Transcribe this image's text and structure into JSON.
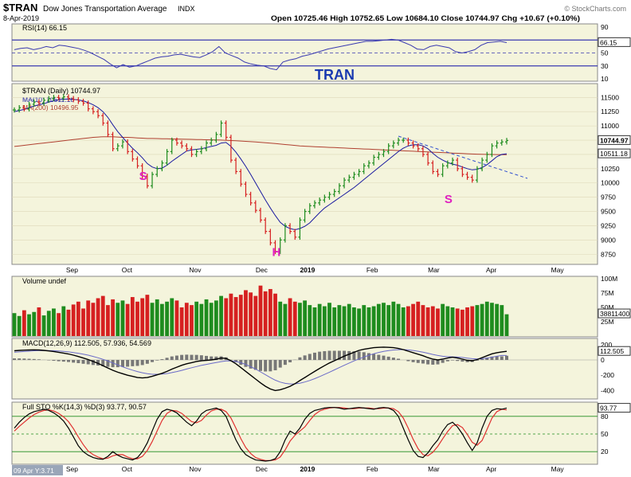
{
  "header": {
    "symbol": "$TRAN",
    "name": "Dow Jones Transportation Average",
    "exchange": "INDX",
    "date": "8-Apr-2019",
    "ohlc_text": "Open 10725.46  High 10752.65  Low 10684.10  Close 10744.97  Chg +10.67 (+0.10%)",
    "brand": "© StockCharts.com"
  },
  "colors": {
    "panel_bg": "#f4f4dc",
    "up": "#1e8c1e",
    "down": "#d62020",
    "line_dark": "#000000",
    "ma10": "#1a1aa0",
    "ma200": "#b04030",
    "rsi": "#3a3ab0",
    "annotation": "#e020c0",
    "tran_label": "#1a3ab0",
    "trendline": "#3050d0"
  },
  "chart_data": [
    {
      "type": "line",
      "panel": "rsi",
      "title": "RSI(14) 66.15",
      "last_value": 66.15,
      "ylim": [
        10,
        90
      ],
      "levels": [
        70,
        50,
        30
      ],
      "ticks": [
        "90",
        "70",
        "50",
        "30",
        "10"
      ],
      "annotation": "TRAN",
      "values": [
        55,
        57,
        58,
        55,
        57,
        60,
        58,
        62,
        61,
        59,
        57,
        54,
        50,
        45,
        40,
        33,
        27,
        32,
        28,
        30,
        34,
        38,
        42,
        44,
        45,
        47,
        48,
        46,
        44,
        43,
        47,
        52,
        60,
        50,
        46,
        42,
        36,
        33,
        31,
        30,
        26,
        24,
        36,
        39,
        41,
        45,
        47,
        50,
        53,
        56,
        58,
        60,
        62,
        64,
        66,
        68,
        68,
        69,
        70,
        71,
        70,
        66,
        62,
        56,
        55,
        60,
        62,
        60,
        58,
        52,
        50,
        52,
        55,
        62,
        66,
        67,
        68,
        66
      ]
    },
    {
      "type": "candlestick",
      "panel": "price",
      "title": "$TRAN (Daily) 10744.97",
      "series": [
        {
          "name": "MA(10) 10511.18",
          "last": 10511.18
        },
        {
          "name": "MA(200) 10496.95",
          "last": 10496.95
        }
      ],
      "ylim": [
        8600,
        11700
      ],
      "y_ticks": [
        "11500",
        "11250",
        "11000",
        "10750",
        "10500",
        "10250",
        "10000",
        "9750",
        "9500",
        "9250",
        "9000",
        "8750"
      ],
      "last_label": "10744.97",
      "ma10_label": "10511.18",
      "x_labels": [
        "Sep",
        "Oct",
        "Nov",
        "Dec",
        "2019",
        "Feb",
        "Mar",
        "Apr",
        "May"
      ],
      "closes": [
        11280,
        11320,
        11300,
        11380,
        11420,
        11400,
        11450,
        11480,
        11500,
        11490,
        11510,
        11480,
        11460,
        11430,
        11400,
        11300,
        11250,
        11180,
        11050,
        10850,
        10600,
        10650,
        10720,
        10550,
        10420,
        10300,
        10120,
        9950,
        10150,
        10250,
        10350,
        10550,
        10750,
        10700,
        10650,
        10600,
        10500,
        10550,
        10600,
        10700,
        10750,
        10850,
        11050,
        10800,
        10400,
        10200,
        9980,
        9800,
        9650,
        9520,
        9350,
        9150,
        8950,
        8800,
        9000,
        9250,
        9150,
        9050,
        9350,
        9500,
        9600,
        9650,
        9700,
        9750,
        9800,
        9850,
        9950,
        10050,
        10100,
        10150,
        10200,
        10300,
        10350,
        10450,
        10500,
        10550,
        10650,
        10700,
        10750,
        10750,
        10700,
        10650,
        10600,
        10500,
        10350,
        10200,
        10150,
        10300,
        10350,
        10400,
        10250,
        10150,
        10100,
        10050,
        10250,
        10400,
        10500,
        10650,
        10700,
        10720,
        10745
      ],
      "ma10": [
        11250,
        11270,
        11290,
        11320,
        11350,
        11370,
        11390,
        11420,
        11440,
        11460,
        11470,
        11470,
        11465,
        11455,
        11440,
        11410,
        11370,
        11320,
        11250,
        11150,
        11020,
        10900,
        10800,
        10700,
        10610,
        10530,
        10440,
        10340,
        10280,
        10250,
        10260,
        10310,
        10380,
        10440,
        10500,
        10560,
        10580,
        10590,
        10600,
        10620,
        10640,
        10660,
        10700,
        10710,
        10640,
        10540,
        10420,
        10290,
        10150,
        10000,
        9850,
        9700,
        9560,
        9430,
        9310,
        9240,
        9200,
        9180,
        9200,
        9240,
        9300,
        9390,
        9480,
        9560,
        9620,
        9680,
        9740,
        9800,
        9860,
        9920,
        9990,
        10060,
        10130,
        10200,
        10270,
        10340,
        10410,
        10480,
        10550,
        10610,
        10650,
        10670,
        10670,
        10650,
        10600,
        10520,
        10450,
        10400,
        10360,
        10330,
        10310,
        10280,
        10250,
        10230,
        10240,
        10270,
        10320,
        10390,
        10460,
        10500,
        10511
      ],
      "ma200": [
        10640,
        10650,
        10660,
        10670,
        10680,
        10690,
        10700,
        10710,
        10720,
        10730,
        10740,
        10750,
        10760,
        10770,
        10780,
        10790,
        10800,
        10805,
        10810,
        10810,
        10810,
        10805,
        10800,
        10800,
        10795,
        10790,
        10785,
        10780,
        10780,
        10778,
        10776,
        10774,
        10772,
        10770,
        10768,
        10766,
        10764,
        10762,
        10760,
        10758,
        10756,
        10754,
        10752,
        10748,
        10744,
        10740,
        10735,
        10730,
        10724,
        10718,
        10712,
        10705,
        10698,
        10690,
        10682,
        10674,
        10666,
        10658,
        10650,
        10645,
        10640,
        10636,
        10632,
        10628,
        10624,
        10620,
        10616,
        10612,
        10608,
        10604,
        10600,
        10596,
        10592,
        10588,
        10584,
        10580,
        10576,
        10572,
        10568,
        10564,
        10560,
        10556,
        10552,
        10548,
        10544,
        10540,
        10536,
        10532,
        10528,
        10524,
        10520,
        10516,
        10512,
        10508,
        10505,
        10503,
        10501,
        10499,
        10498,
        10497,
        10497
      ],
      "annotations": [
        "S",
        "H",
        "S"
      ]
    },
    {
      "type": "bar",
      "panel": "volume",
      "title": "Volume undef",
      "ylim": [
        0,
        100
      ],
      "y_ticks": [
        "100M",
        "75M",
        "50M",
        "25M"
      ],
      "last_label": "38811400",
      "values": [
        40,
        35,
        45,
        38,
        42,
        50,
        36,
        44,
        48,
        40,
        52,
        46,
        55,
        60,
        48,
        62,
        58,
        66,
        70,
        54,
        64,
        58,
        62,
        56,
        68,
        60,
        66,
        72,
        58,
        64,
        56,
        60,
        66,
        62,
        50,
        58,
        54,
        60,
        56,
        64,
        58,
        62,
        70,
        66,
        74,
        68,
        72,
        80,
        76,
        70,
        88,
        78,
        82,
        74,
        60,
        56,
        66,
        60,
        58,
        62,
        54,
        50,
        56,
        52,
        58,
        50,
        54,
        52,
        56,
        50,
        48,
        54,
        50,
        52,
        56,
        58,
        54,
        60,
        56,
        50,
        52,
        56,
        60,
        54,
        50,
        52,
        48,
        56,
        52,
        50,
        48,
        46,
        50,
        52,
        54,
        56,
        60,
        58,
        56,
        54,
        38
      ]
    },
    {
      "type": "line",
      "panel": "macd",
      "title": "MACD(12,26,9) 112.505, 57.936, 54.569",
      "values_label": [
        "112.505",
        "57.936",
        "54.569"
      ],
      "ylim": [
        -500,
        250
      ],
      "y_ticks": [
        "200",
        "0",
        "-200",
        "-400"
      ],
      "macd": [
        120,
        125,
        128,
        130,
        132,
        130,
        125,
        118,
        110,
        100,
        90,
        78,
        62,
        45,
        25,
        5,
        -20,
        -45,
        -75,
        -105,
        -135,
        -160,
        -180,
        -200,
        -215,
        -230,
        -235,
        -230,
        -215,
        -195,
        -175,
        -150,
        -120,
        -95,
        -70,
        -50,
        -35,
        -20,
        -10,
        -5,
        0,
        10,
        25,
        20,
        -10,
        -50,
        -100,
        -150,
        -200,
        -250,
        -300,
        -345,
        -380,
        -400,
        -390,
        -370,
        -345,
        -310,
        -270,
        -230,
        -190,
        -150,
        -110,
        -75,
        -40,
        -10,
        20,
        50,
        75,
        100,
        125,
        140,
        150,
        160,
        165,
        168,
        165,
        160,
        150,
        135,
        115,
        95,
        75,
        55,
        30,
        10,
        0,
        10,
        25,
        35,
        25,
        10,
        -5,
        -10,
        5,
        30,
        55,
        80,
        95,
        105,
        112
      ],
      "signal": [
        100,
        105,
        110,
        115,
        120,
        122,
        124,
        123,
        121,
        117,
        112,
        105,
        97,
        87,
        75,
        62,
        46,
        28,
        8,
        -15,
        -40,
        -65,
        -90,
        -112,
        -133,
        -152,
        -168,
        -180,
        -187,
        -188,
        -185,
        -178,
        -166,
        -152,
        -136,
        -119,
        -102,
        -86,
        -71,
        -58,
        -46,
        -34,
        -22,
        -14,
        -13,
        -20,
        -36,
        -59,
        -87,
        -120,
        -156,
        -194,
        -231,
        -265,
        -290,
        -306,
        -314,
        -313,
        -304,
        -289,
        -269,
        -245,
        -218,
        -190,
        -160,
        -130,
        -100,
        -70,
        -41,
        -13,
        14,
        39,
        61,
        81,
        98,
        112,
        122,
        130,
        134,
        135,
        131,
        124,
        114,
        102,
        88,
        72,
        58,
        48,
        43,
        41,
        38,
        32,
        24,
        17,
        14,
        17,
        25,
        36,
        48,
        58,
        58
      ],
      "histogram": [
        20,
        20,
        18,
        15,
        12,
        8,
        1,
        -5,
        -11,
        -17,
        -22,
        -27,
        -35,
        -42,
        -50,
        -57,
        -66,
        -73,
        -83,
        -90,
        -95,
        -95,
        -90,
        -88,
        -82,
        -78,
        -67,
        -50,
        -28,
        -7,
        10,
        28,
        46,
        57,
        66,
        69,
        67,
        66,
        61,
        53,
        46,
        44,
        47,
        34,
        3,
        -30,
        -64,
        -91,
        -113,
        -130,
        -144,
        -151,
        -149,
        -135,
        -100,
        -64,
        -31,
        3,
        34,
        59,
        79,
        95,
        108,
        115,
        120,
        120,
        120,
        120,
        116,
        113,
        111,
        101,
        89,
        79,
        67,
        56,
        43,
        30,
        16,
        0,
        -16,
        -29,
        -39,
        -47,
        -58,
        -62,
        -58,
        -38,
        -18,
        -6,
        -13,
        -22,
        -29,
        -27,
        -9,
        13,
        30,
        44,
        47,
        47,
        55
      ]
    },
    {
      "type": "line",
      "panel": "sto",
      "title": "Full STO %K(14,3) %D(3) 93.77, 90.57",
      "values_label": [
        "93.77",
        "90.57"
      ],
      "ylim": [
        0,
        100
      ],
      "levels": [
        80,
        50,
        20
      ],
      "y_ticks": [
        "80",
        "50",
        "20"
      ],
      "last_label": "93.77",
      "k": [
        60,
        70,
        78,
        84,
        88,
        90,
        92,
        90,
        86,
        80,
        72,
        60,
        45,
        30,
        20,
        14,
        10,
        8,
        7,
        12,
        20,
        14,
        10,
        8,
        6,
        10,
        20,
        35,
        55,
        75,
        88,
        92,
        90,
        86,
        78,
        70,
        64,
        72,
        84,
        90,
        92,
        94,
        90,
        80,
        60,
        40,
        25,
        15,
        10,
        6,
        5,
        4,
        5,
        8,
        20,
        40,
        55,
        50,
        60,
        75,
        85,
        90,
        92,
        94,
        95,
        95,
        94,
        92,
        93,
        94,
        95,
        94,
        93,
        92,
        94,
        95,
        94,
        90,
        80,
        60,
        40,
        22,
        12,
        10,
        18,
        30,
        40,
        55,
        66,
        70,
        62,
        50,
        35,
        22,
        35,
        60,
        80,
        90,
        93,
        92,
        94
      ],
      "d": [
        55,
        63,
        70,
        77,
        83,
        87,
        90,
        91,
        89,
        85,
        79,
        71,
        59,
        45,
        32,
        21,
        15,
        11,
        8,
        9,
        13,
        15,
        15,
        11,
        8,
        8,
        12,
        22,
        37,
        55,
        73,
        85,
        90,
        89,
        85,
        78,
        71,
        69,
        73,
        82,
        89,
        92,
        92,
        88,
        77,
        60,
        42,
        27,
        17,
        10,
        7,
        5,
        5,
        6,
        11,
        23,
        38,
        48,
        55,
        62,
        73,
        83,
        89,
        92,
        94,
        95,
        95,
        94,
        93,
        93,
        94,
        94,
        94,
        93,
        93,
        94,
        94,
        93,
        88,
        77,
        60,
        41,
        25,
        15,
        13,
        19,
        29,
        42,
        54,
        64,
        66,
        61,
        49,
        36,
        31,
        39,
        58,
        77,
        88,
        92,
        91
      ]
    }
  ],
  "footer": {
    "cursor_label": "09 Apr Y:3.71"
  },
  "x_axis_bottom": [
    "Sep",
    "Oct",
    "Nov",
    "Dec",
    "2019",
    "Feb",
    "Mar",
    "Apr",
    "May"
  ]
}
